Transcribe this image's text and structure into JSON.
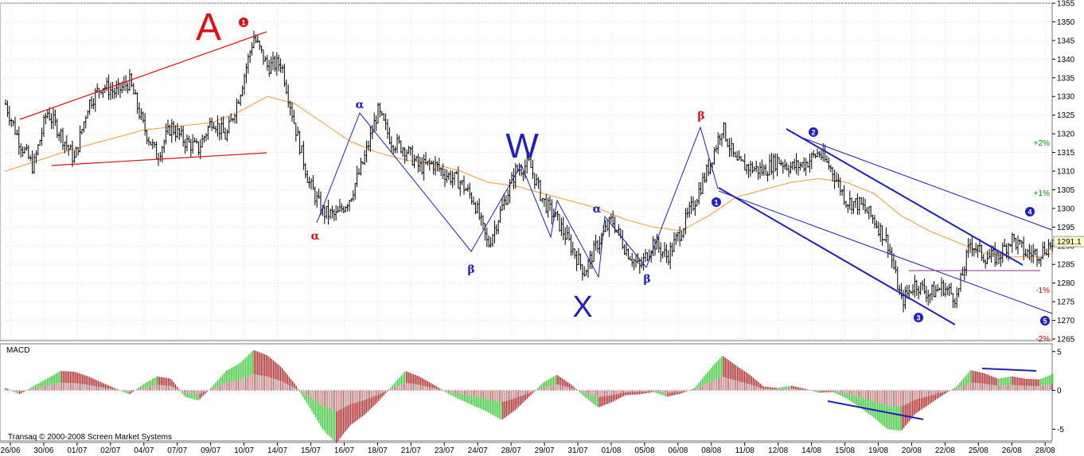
{
  "app": {
    "copyright": "Transaq © 2000-2008 Screen Market Systems"
  },
  "colors": {
    "price_bar": "#000000",
    "ma": "#ff9933",
    "trend_red": "#e01010",
    "wave_blue": "#2020c0",
    "macd_green": "#33cc33",
    "macd_red": "#b22222",
    "last_price_bg": "#ffffcc",
    "pct_green": "#009900",
    "pct_red": "#cc0000"
  },
  "chart_data": [
    {
      "type": "candlestick",
      "title": "",
      "last_price": "1291.1",
      "ylim": [
        1265,
        1355
      ],
      "yticks": [
        "1355",
        "1350",
        "1345",
        "1340",
        "1335",
        "1330",
        "1325",
        "1320",
        "1315",
        "1310",
        "1305",
        "1300",
        "1295",
        "1290",
        "1285",
        "1280",
        "1275",
        "1270",
        "1265"
      ],
      "x_dates": [
        "26/06",
        "30/06",
        "01/07",
        "02/07",
        "04/07",
        "07/07",
        "09/07",
        "10/07",
        "14/07",
        "15/07",
        "16/07",
        "18/07",
        "21/07",
        "23/07",
        "24/07",
        "28/07",
        "29/07",
        "31/07",
        "01/08",
        "05/08",
        "06/08",
        "08/08",
        "11/08",
        "12/08",
        "14/08",
        "15/08",
        "19/08",
        "20/08",
        "22/08",
        "25/08",
        "26/08",
        "28/08"
      ],
      "percent_levels": [
        {
          "label": "+2%",
          "value": 1317.5,
          "color": "#009900"
        },
        {
          "label": "+1%",
          "value": 1304.0,
          "color": "#009900"
        },
        {
          "label": "-1%",
          "value": 1278.0,
          "color": "#cc0000"
        },
        {
          "label": "-2%",
          "value": 1265.0,
          "color": "#cc0000"
        }
      ],
      "price_path": [
        [
          0,
          1328
        ],
        [
          1,
          1318
        ],
        [
          2,
          1311
        ],
        [
          3,
          1326
        ],
        [
          4,
          1320
        ],
        [
          5,
          1313
        ],
        [
          6,
          1328
        ],
        [
          7,
          1333
        ],
        [
          8,
          1331
        ],
        [
          9,
          1334
        ],
        [
          10,
          1322
        ],
        [
          11,
          1314
        ],
        [
          12,
          1322
        ],
        [
          13,
          1318
        ],
        [
          14,
          1316
        ],
        [
          15,
          1324
        ],
        [
          16,
          1319
        ],
        [
          17,
          1331
        ],
        [
          18,
          1346
        ],
        [
          19,
          1338
        ],
        [
          20,
          1339
        ],
        [
          21,
          1322
        ],
        [
          22,
          1307
        ],
        [
          23,
          1299
        ],
        [
          24,
          1298
        ],
        [
          25,
          1303
        ],
        [
          26,
          1313
        ],
        [
          27,
          1326
        ],
        [
          28,
          1318
        ],
        [
          29,
          1316
        ],
        [
          30,
          1311
        ],
        [
          31,
          1312
        ],
        [
          32,
          1309
        ],
        [
          33,
          1307
        ],
        [
          34,
          1302
        ],
        [
          35,
          1290
        ],
        [
          36,
          1300
        ],
        [
          37,
          1310
        ],
        [
          38,
          1312
        ],
        [
          39,
          1302
        ],
        [
          40,
          1297
        ],
        [
          41,
          1290
        ],
        [
          42,
          1283
        ],
        [
          43,
          1291
        ],
        [
          44,
          1297
        ],
        [
          45,
          1289
        ],
        [
          46,
          1284
        ],
        [
          47,
          1291
        ],
        [
          48,
          1287
        ],
        [
          49,
          1294
        ],
        [
          50,
          1302
        ],
        [
          51,
          1311
        ],
        [
          52,
          1322
        ],
        [
          53,
          1312
        ],
        [
          54,
          1311
        ],
        [
          55,
          1310
        ],
        [
          56,
          1313
        ],
        [
          57,
          1311
        ],
        [
          58,
          1312
        ],
        [
          59,
          1315
        ],
        [
          60,
          1310
        ],
        [
          61,
          1302
        ],
        [
          62,
          1301
        ],
        [
          63,
          1297
        ],
        [
          64,
          1291
        ],
        [
          65,
          1275
        ],
        [
          66,
          1280
        ],
        [
          67,
          1277
        ],
        [
          68,
          1279
        ],
        [
          69,
          1276
        ],
        [
          70,
          1291
        ],
        [
          71,
          1287
        ],
        [
          72,
          1287
        ],
        [
          73,
          1292
        ],
        [
          74,
          1288
        ],
        [
          75,
          1288
        ],
        [
          76,
          1291
        ]
      ],
      "ma_path": [
        [
          0,
          1310
        ],
        [
          5,
          1316
        ],
        [
          10,
          1321
        ],
        [
          15,
          1323
        ],
        [
          17,
          1326
        ],
        [
          19,
          1330
        ],
        [
          21,
          1328
        ],
        [
          23,
          1323
        ],
        [
          25,
          1318
        ],
        [
          27,
          1315
        ],
        [
          29,
          1313
        ],
        [
          31,
          1312
        ],
        [
          33,
          1310
        ],
        [
          35,
          1307
        ],
        [
          37,
          1306
        ],
        [
          39,
          1304
        ],
        [
          41,
          1302
        ],
        [
          43,
          1300
        ],
        [
          45,
          1297
        ],
        [
          47,
          1295
        ],
        [
          49,
          1294
        ],
        [
          51,
          1298
        ],
        [
          53,
          1303
        ],
        [
          55,
          1305
        ],
        [
          57,
          1307
        ],
        [
          59,
          1308
        ],
        [
          61,
          1307
        ],
        [
          63,
          1304
        ],
        [
          65,
          1298
        ],
        [
          67,
          1294
        ],
        [
          69,
          1291
        ],
        [
          71,
          1288
        ],
        [
          73,
          1287
        ],
        [
          75,
          1287
        ],
        [
          76,
          1288
        ]
      ]
    },
    {
      "type": "bar",
      "title": "MACD",
      "ylim": [
        -6.5,
        6
      ],
      "yticks": [
        "5",
        "0",
        "-5"
      ],
      "values": [
        0.3,
        -0.5,
        0.5,
        1.5,
        2.5,
        2.4,
        1.8,
        1.0,
        0.2,
        -0.5,
        0.8,
        1.8,
        1.5,
        -0.8,
        -1.3,
        0.5,
        2.5,
        3.5,
        5.2,
        4.5,
        3.0,
        0.8,
        -2.0,
        -5.0,
        -6.8,
        -4.5,
        -3.2,
        -1.5,
        0.5,
        2.5,
        1.8,
        0.8,
        -0.3,
        -1.2,
        -2.0,
        -2.8,
        -3.8,
        -2.5,
        -0.8,
        1.0,
        2.0,
        0.8,
        -0.8,
        -2.2,
        -1.5,
        -0.6,
        -0.5,
        -0.2,
        -0.8,
        -0.4,
        0.3,
        2.5,
        4.5,
        3.2,
        2.0,
        0.5,
        0.3,
        0.6,
        0.2,
        -0.3,
        -0.2,
        -1.0,
        -2.2,
        -3.5,
        -5.0,
        -5.2,
        -3.0,
        -1.8,
        -0.6,
        0.5,
        2.6,
        2.2,
        1.5,
        1.8,
        1.5,
        1.4,
        2.1
      ]
    }
  ],
  "annotations": [
    {
      "kind": "text",
      "text": "A",
      "color": "#e01010"
    },
    {
      "kind": "text",
      "text": "W",
      "color": "#2020c0"
    },
    {
      "kind": "text",
      "text": "X",
      "color": "#2020c0"
    },
    {
      "kind": "text",
      "text": "α",
      "color": "#e01010"
    },
    {
      "kind": "text",
      "text": "α",
      "color": "#2020c0"
    },
    {
      "kind": "text",
      "text": "β",
      "color": "#2020c0"
    },
    {
      "kind": "text",
      "text": "α",
      "color": "#2020c0"
    },
    {
      "kind": "text",
      "text": "β",
      "color": "#2020c0"
    },
    {
      "kind": "text",
      "text": "β",
      "color": "#e01010"
    },
    {
      "kind": "circle",
      "text": "1",
      "color": "#e01010"
    },
    {
      "kind": "circle",
      "text": "1",
      "color": "#2020c0"
    },
    {
      "kind": "circle",
      "text": "2",
      "color": "#2020c0"
    },
    {
      "kind": "circle",
      "text": "3",
      "color": "#2020c0"
    },
    {
      "kind": "circle",
      "text": "4",
      "color": "#2020c0"
    },
    {
      "kind": "circle",
      "text": "5",
      "color": "#2020c0"
    }
  ]
}
